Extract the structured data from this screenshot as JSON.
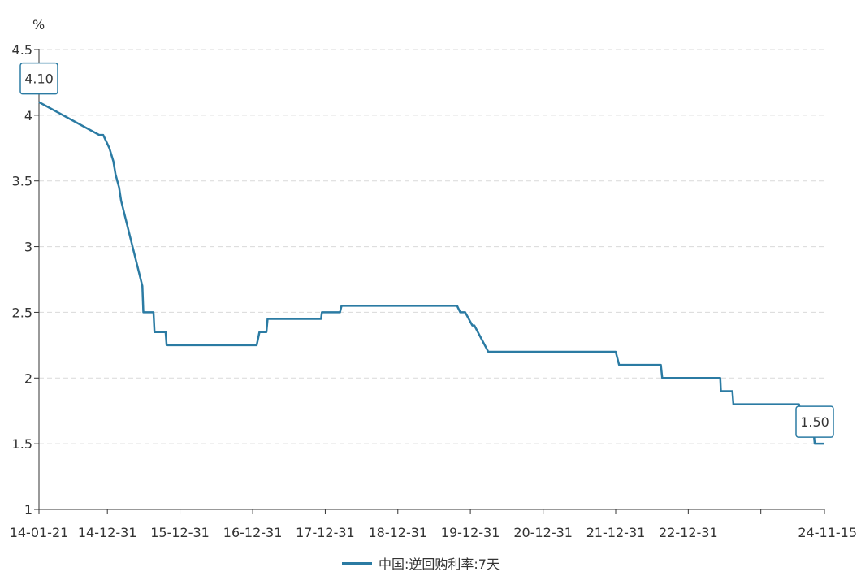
{
  "chart_data": {
    "type": "line",
    "unit": "%",
    "yticks": [
      "1",
      "1.5",
      "2",
      "2.5",
      "3",
      "3.5",
      "4",
      "4.5"
    ],
    "ylim": [
      1,
      4.5
    ],
    "xlim": [
      "2014-01-21",
      "2024-11-15"
    ],
    "xtick_labels": [
      {
        "date": "2014-01-21",
        "label": "14-01-21"
      },
      {
        "date": "2014-12-31",
        "label": "14-12-31"
      },
      {
        "date": "2015-12-31",
        "label": "15-12-31"
      },
      {
        "date": "2016-12-31",
        "label": "16-12-31"
      },
      {
        "date": "2017-12-31",
        "label": "17-12-31"
      },
      {
        "date": "2018-12-31",
        "label": "18-12-31"
      },
      {
        "date": "2019-12-31",
        "label": "19-12-31"
      },
      {
        "date": "2020-12-31",
        "label": "20-12-31"
      },
      {
        "date": "2021-12-31",
        "label": "21-12-31"
      },
      {
        "date": "2022-12-31",
        "label": "22-12-31"
      },
      {
        "date": "2023-12-31",
        "label": ""
      },
      {
        "date": "2024-11-15",
        "label": "24-11-15"
      }
    ],
    "grid": true,
    "legend_position": "bottom",
    "series": [
      {
        "name": "中国:逆回购利率:7天",
        "color": "#2b7ba3",
        "points": [
          [
            "2014-01-21",
            4.1
          ],
          [
            "2014-11-20",
            3.85
          ],
          [
            "2014-12-10",
            3.85
          ],
          [
            "2015-01-10",
            3.75
          ],
          [
            "2015-01-30",
            3.65
          ],
          [
            "2015-02-10",
            3.55
          ],
          [
            "2015-02-28",
            3.45
          ],
          [
            "2015-03-10",
            3.35
          ],
          [
            "2015-06-25",
            2.7
          ],
          [
            "2015-06-30",
            2.5
          ],
          [
            "2015-08-20",
            2.5
          ],
          [
            "2015-08-25",
            2.35
          ],
          [
            "2015-10-20",
            2.35
          ],
          [
            "2015-10-25",
            2.25
          ],
          [
            "2017-01-20",
            2.25
          ],
          [
            "2017-02-03",
            2.35
          ],
          [
            "2017-03-10",
            2.35
          ],
          [
            "2017-03-16",
            2.45
          ],
          [
            "2017-12-10",
            2.45
          ],
          [
            "2017-12-14",
            2.5
          ],
          [
            "2018-03-15",
            2.5
          ],
          [
            "2018-03-23",
            2.55
          ],
          [
            "2019-10-25",
            2.55
          ],
          [
            "2019-11-10",
            2.5
          ],
          [
            "2019-12-05",
            2.5
          ],
          [
            "2020-01-10",
            2.4
          ],
          [
            "2020-01-20",
            2.4
          ],
          [
            "2020-03-30",
            2.2
          ],
          [
            "2021-12-31",
            2.2
          ],
          [
            "2022-01-17",
            2.1
          ],
          [
            "2022-08-15",
            2.1
          ],
          [
            "2022-08-22",
            2.0
          ],
          [
            "2023-06-10",
            2.0
          ],
          [
            "2023-06-13",
            1.9
          ],
          [
            "2023-08-10",
            1.9
          ],
          [
            "2023-08-15",
            1.8
          ],
          [
            "2024-07-10",
            1.8
          ],
          [
            "2024-07-22",
            1.7
          ],
          [
            "2024-09-15",
            1.7
          ],
          [
            "2024-09-27",
            1.5
          ],
          [
            "2024-11-15",
            1.5
          ]
        ]
      }
    ],
    "annotations": [
      {
        "label": "4.10",
        "date": "2014-01-21",
        "value": 4.1
      },
      {
        "label": "1.50",
        "date": "2024-11-15",
        "value": 1.5
      }
    ]
  }
}
